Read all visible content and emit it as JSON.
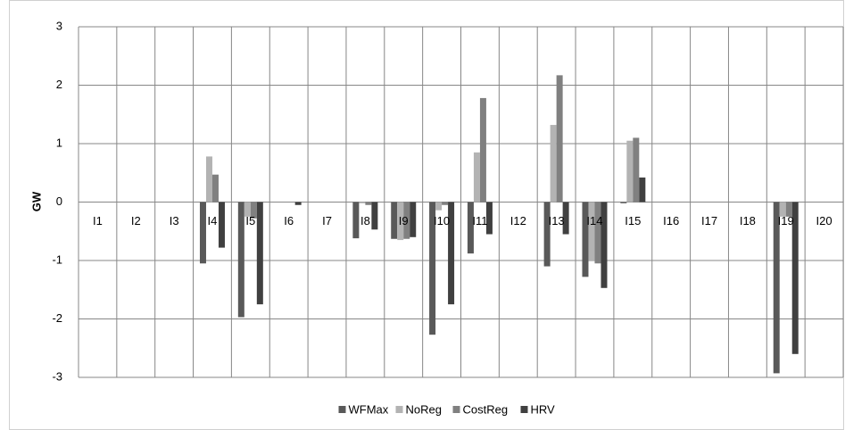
{
  "chart_data": {
    "type": "bar",
    "ylabel": "GW",
    "categories": [
      "I1",
      "I2",
      "I3",
      "I4",
      "I5",
      "I6",
      "I7",
      "I8",
      "I9",
      "I10",
      "I11",
      "I12",
      "I13",
      "I14",
      "I15",
      "I16",
      "I17",
      "I18",
      "I19",
      "I20"
    ],
    "series": [
      {
        "name": "WFMax",
        "color": "#595959",
        "values": [
          0,
          0,
          0,
          -1.05,
          -1.97,
          0,
          0,
          -0.62,
          -0.63,
          -2.27,
          -0.88,
          0,
          -1.1,
          -1.28,
          -0.02,
          0,
          0,
          0,
          -2.93,
          0
        ]
      },
      {
        "name": "NoReg",
        "color": "#b3b3b3",
        "values": [
          0,
          0,
          0,
          0.78,
          -0.25,
          0,
          0,
          -0.02,
          -0.65,
          -0.14,
          0.85,
          0,
          1.32,
          -1.0,
          1.05,
          0,
          0,
          0,
          -0.25,
          0
        ]
      },
      {
        "name": "CostReg",
        "color": "#808080",
        "values": [
          0,
          0,
          0,
          0.47,
          -0.28,
          0,
          0,
          -0.05,
          -0.63,
          -0.05,
          1.78,
          0,
          2.17,
          -1.05,
          1.1,
          0,
          0,
          0,
          -0.25,
          0
        ]
      },
      {
        "name": "HRV",
        "color": "#404040",
        "values": [
          0,
          0,
          0,
          -0.78,
          -1.75,
          -0.05,
          0,
          -0.47,
          -0.6,
          -1.75,
          -0.55,
          0,
          -0.55,
          -1.47,
          0.42,
          0,
          0,
          0,
          -2.6,
          0
        ]
      }
    ],
    "ylim": [
      -3,
      3
    ],
    "yticks": [
      -3,
      -2,
      -1,
      0,
      1,
      2,
      3
    ],
    "grid": true,
    "legend": "bottom"
  }
}
